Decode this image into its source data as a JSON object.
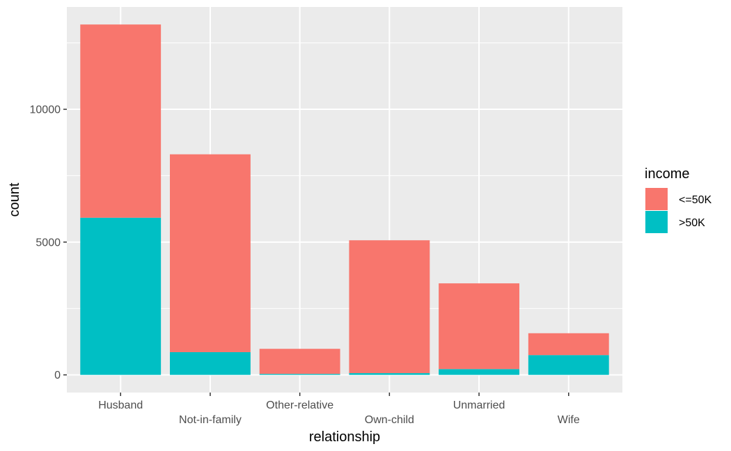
{
  "chart_data": {
    "type": "bar",
    "stacked": true,
    "categories": [
      "Husband",
      "Not-in-family",
      "Other-relative",
      "Own-child",
      "Unmarried",
      "Wife"
    ],
    "series": [
      {
        "name": "<=50K",
        "color": "#F8766D",
        "values": [
          7275,
          7449,
          944,
          5001,
          3228,
          823
        ]
      },
      {
        "name": ">50K",
        "color": "#00BFC4",
        "values": [
          5918,
          856,
          37,
          67,
          218,
          745
        ]
      }
    ],
    "xlabel": "relationship",
    "ylabel": "count",
    "ylim": [
      -665,
      13853
    ],
    "yticks": [
      0,
      5000,
      10000
    ],
    "ytick_labels": [
      "0",
      "5000",
      "10000"
    ],
    "grid": true,
    "legend": {
      "title": "income",
      "position": "right"
    },
    "panel_background": "#EBEBEB",
    "grid_color": "#FFFFFF"
  }
}
